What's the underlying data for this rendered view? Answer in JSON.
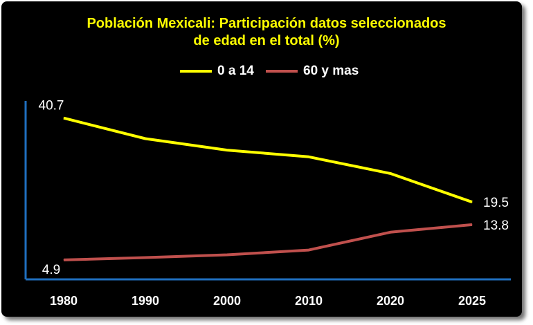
{
  "chart_data": {
    "type": "line",
    "title_line1": "Población Mexicali: Participación datos seleccionados",
    "title_line2": "de edad en el total (%)",
    "categories": [
      "1980",
      "1990",
      "2000",
      "2010",
      "2020",
      "2025"
    ],
    "series": [
      {
        "name": "0 a 14",
        "color": "#ffff00",
        "values": [
          40.7,
          35.5,
          32.6,
          30.9,
          26.7,
          19.5
        ]
      },
      {
        "name": "60 y mas",
        "color": "#c0504d",
        "values": [
          4.9,
          5.5,
          6.2,
          7.4,
          11.9,
          13.8
        ]
      }
    ],
    "data_labels": [
      {
        "series": 0,
        "index": 0,
        "text": "40.7"
      },
      {
        "series": 0,
        "index": 5,
        "text": "19.5"
      },
      {
        "series": 1,
        "index": 0,
        "text": "4.9"
      },
      {
        "series": 1,
        "index": 5,
        "text": "13.8"
      }
    ],
    "ylim": [
      0,
      45
    ],
    "grid": false,
    "legend_position": "top",
    "axis_color": "#1f6fbf",
    "background": "#000000"
  }
}
